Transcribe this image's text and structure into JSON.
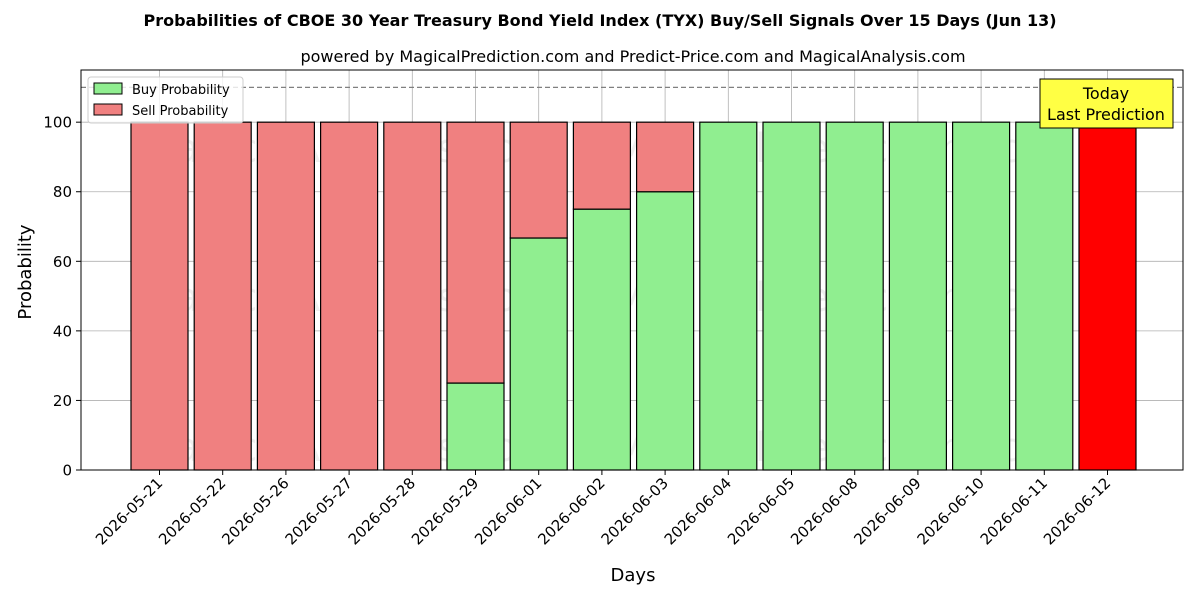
{
  "chart_data": {
    "type": "bar",
    "stacked": true,
    "title": "Probabilities of CBOE 30 Year Treasury Bond Yield Index (TYX) Buy/Sell Signals Over 15 Days (Jun 13)",
    "subtitle": "powered by MagicalPrediction.com and Predict-Price.com and MagicalAnalysis.com",
    "xlabel": "Days",
    "ylabel": "Probability",
    "ylim": [
      0,
      115
    ],
    "yticks": [
      0,
      20,
      40,
      60,
      80,
      100
    ],
    "grid": true,
    "categories": [
      "2026-05-21",
      "2026-05-22",
      "2026-05-26",
      "2026-05-27",
      "2026-05-28",
      "2026-05-29",
      "2026-06-01",
      "2026-06-02",
      "2026-06-03",
      "2026-06-04",
      "2026-06-05",
      "2026-06-08",
      "2026-06-09",
      "2026-06-10",
      "2026-06-11",
      "2026-06-12"
    ],
    "series": [
      {
        "name": "Buy Probability",
        "color": "#90ee90",
        "values": [
          0,
          0,
          0,
          0,
          0,
          25,
          66.7,
          75,
          80,
          100,
          100,
          100,
          100,
          100,
          100,
          0
        ]
      },
      {
        "name": "Sell Probability",
        "color": "#f08080",
        "values": [
          100,
          100,
          100,
          100,
          100,
          75,
          33.3,
          25,
          20,
          0,
          0,
          0,
          0,
          0,
          0,
          100
        ]
      }
    ],
    "highlight": {
      "index": 15,
      "color": "#ff0000"
    },
    "reference_line": {
      "y": 110,
      "style": "dashed",
      "color": "#808080"
    },
    "legend_position": "top-left",
    "annotation": {
      "lines": [
        "Today",
        "Last Prediction"
      ],
      "background": "#ffff44"
    },
    "watermarks": [
      "MagicalAnalysis.com",
      "MagicalPrediction.com"
    ]
  }
}
